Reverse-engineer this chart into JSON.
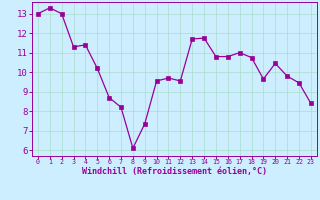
{
  "x": [
    0,
    1,
    2,
    3,
    4,
    5,
    6,
    7,
    8,
    9,
    10,
    11,
    12,
    13,
    14,
    15,
    16,
    17,
    18,
    19,
    20,
    21,
    22,
    23
  ],
  "y": [
    13.0,
    13.3,
    13.0,
    11.3,
    11.4,
    10.2,
    8.7,
    8.2,
    6.1,
    7.35,
    9.55,
    9.7,
    9.55,
    11.7,
    11.75,
    10.8,
    10.8,
    11.0,
    10.75,
    9.65,
    10.45,
    9.8,
    9.45,
    8.4
  ],
  "line_color": "#990099",
  "marker_color": "#990099",
  "bg_color": "#cceeff",
  "grid_color": "#aaddcc",
  "axis_label_color": "#990099",
  "tick_color": "#990099",
  "xlabel": "Windchill (Refroidissement éolien,°C)",
  "xlim": [
    -0.5,
    23.5
  ],
  "ylim": [
    5.7,
    13.6
  ],
  "yticks": [
    6,
    7,
    8,
    9,
    10,
    11,
    12,
    13
  ],
  "xticks": [
    0,
    1,
    2,
    3,
    4,
    5,
    6,
    7,
    8,
    9,
    10,
    11,
    12,
    13,
    14,
    15,
    16,
    17,
    18,
    19,
    20,
    21,
    22,
    23
  ],
  "xlabel_fontsize": 6.0,
  "ytick_fontsize": 6.5,
  "xtick_fontsize": 4.8
}
